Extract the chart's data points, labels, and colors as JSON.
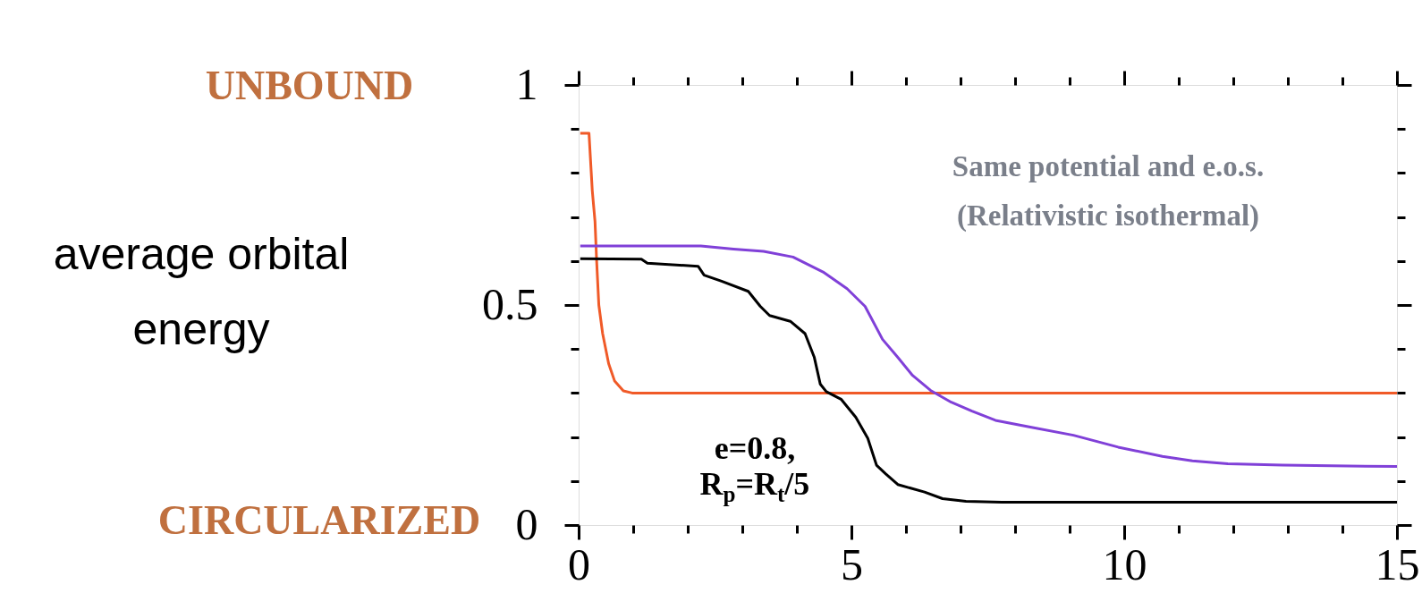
{
  "chart_data": {
    "type": "line",
    "ylabel": "average orbital\nenergy",
    "xlim": [
      0,
      15
    ],
    "xticks": [
      0,
      {
        "value": 1,
        "label": null
      },
      {
        "value": 2,
        "label": null
      },
      {
        "value": 3,
        "label": null
      },
      {
        "value": 4,
        "label": null
      },
      5,
      {
        "value": 6,
        "label": null
      },
      {
        "value": 7,
        "label": null
      },
      {
        "value": 8,
        "label": null
      },
      {
        "value": 9,
        "label": null
      },
      10,
      {
        "value": 11,
        "label": null
      },
      {
        "value": 12,
        "label": null
      },
      {
        "value": 13,
        "label": null
      },
      {
        "value": 14,
        "label": null
      },
      15
    ],
    "ylim": [
      0,
      1
    ],
    "yticks": [
      0,
      {
        "value": 0.1,
        "label": null
      },
      {
        "value": 0.2,
        "label": null
      },
      {
        "value": 0.3,
        "label": null
      },
      {
        "value": 0.4,
        "label": null
      },
      0.5,
      {
        "value": 0.6,
        "label": null
      },
      {
        "value": 0.7,
        "label": null
      },
      {
        "value": 0.8,
        "label": null
      },
      {
        "value": 0.9,
        "label": null
      },
      1
    ],
    "series": [
      {
        "color": "#f05a28",
        "x": [
          0.03,
          0.19,
          0.25,
          0.3,
          0.33,
          0.37,
          0.44,
          0.55,
          0.66,
          0.82,
          0.98,
          15
        ],
        "values": [
          0.89,
          0.89,
          0.76,
          0.69,
          0.6,
          0.5,
          0.435,
          0.367,
          0.327,
          0.305,
          0.3,
          0.3
        ]
      },
      {
        "color": "#8040d8",
        "x": [
          0.03,
          2.24,
          2.84,
          3.39,
          3.93,
          4.48,
          4.92,
          5.25,
          5.57,
          5.85,
          6.12,
          6.45,
          6.83,
          7.21,
          7.64,
          8.3,
          9.07,
          9.89,
          10.7,
          11.25,
          11.9,
          12.9,
          15
        ],
        "values": [
          0.634,
          0.634,
          0.627,
          0.622,
          0.609,
          0.575,
          0.537,
          0.497,
          0.422,
          0.381,
          0.34,
          0.306,
          0.279,
          0.259,
          0.238,
          0.222,
          0.204,
          0.177,
          0.156,
          0.146,
          0.139,
          0.136,
          0.133
        ]
      },
      {
        "color": "#000000",
        "x": [
          0.03,
          1.15,
          1.26,
          2.19,
          2.3,
          2.62,
          3.11,
          3.33,
          3.5,
          3.88,
          4.15,
          4.32,
          4.43,
          4.54,
          4.81,
          5.08,
          5.3,
          5.46,
          5.63,
          5.85,
          6.34,
          6.67,
          7.1,
          7.76,
          15
        ],
        "values": [
          0.605,
          0.604,
          0.595,
          0.588,
          0.568,
          0.554,
          0.531,
          0.497,
          0.476,
          0.463,
          0.435,
          0.381,
          0.32,
          0.303,
          0.286,
          0.245,
          0.197,
          0.136,
          0.116,
          0.092,
          0.075,
          0.06,
          0.054,
          0.052,
          0.052
        ]
      }
    ],
    "annotations": [
      "UNBOUND",
      "CIRCULARIZED",
      "Same potential and e.o.s.\n(Relativistic isothermal)",
      "e=0.8,\nR$_{p}$=R$_{t}$/5"
    ]
  }
}
